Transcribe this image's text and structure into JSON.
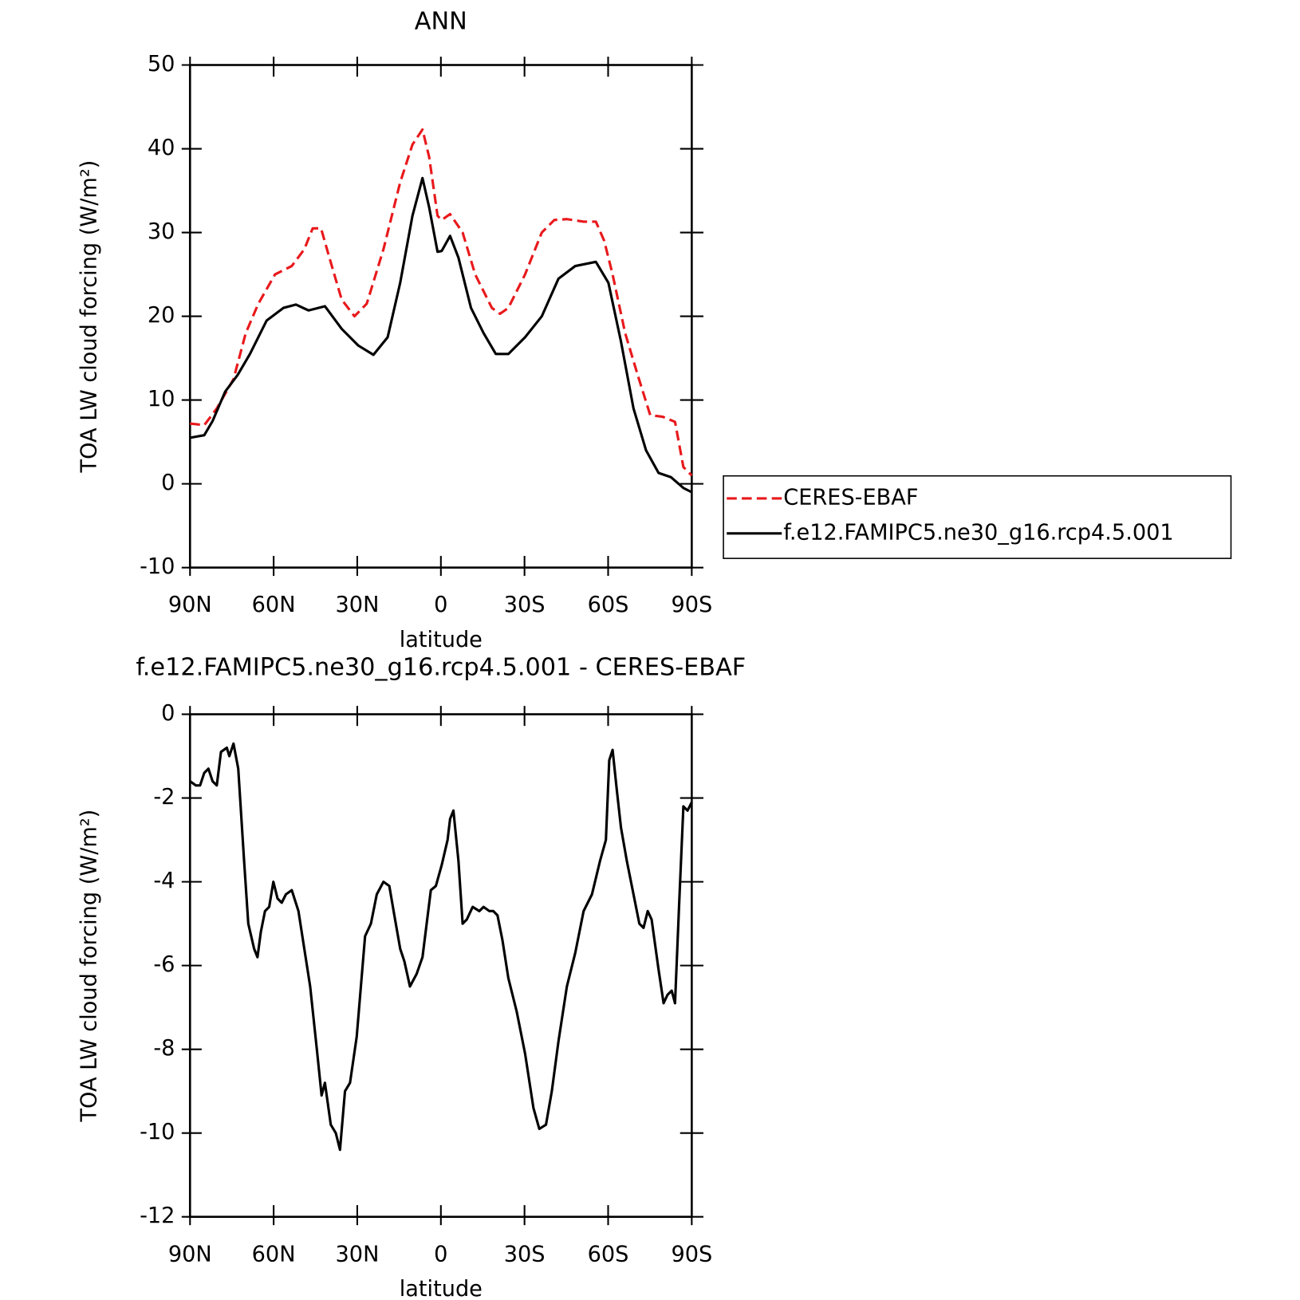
{
  "chart_data": [
    {
      "type": "line",
      "title": "ANN",
      "xlabel": "latitude",
      "ylabel": "TOA LW cloud forcing (W/m²)",
      "xlim": [
        90,
        -90
      ],
      "ylim": [
        -10,
        50
      ],
      "xticks": [
        {
          "value": 90,
          "label": "90N"
        },
        {
          "value": 60,
          "label": "60N"
        },
        {
          "value": 30,
          "label": "30N"
        },
        0,
        {
          "value": -30,
          "label": "30S"
        },
        {
          "value": -60,
          "label": "60S"
        },
        {
          "value": -90,
          "label": "90S"
        }
      ],
      "yticks": [
        -10,
        0,
        10,
        20,
        30,
        40,
        50
      ],
      "legend": "right",
      "series": [
        {
          "name": "CERES-EBAF",
          "color": "#e8191c",
          "linestyle": "dashed",
          "x": [
            90,
            84.9,
            80.4,
            74.4,
            70,
            65.5,
            59.5,
            53.5,
            49,
            46,
            43,
            40,
            35.6,
            31,
            26.6,
            20.6,
            14.6,
            10.2,
            6.6,
            4.2,
            1.2,
            -0.3,
            -3.3,
            -7.8,
            -12.3,
            -18.3,
            -21.2,
            -24.2,
            -30.2,
            -36.2,
            -40.7,
            -45.2,
            -51.2,
            -55.6,
            -58.6,
            -61.6,
            -66.1,
            -70.6,
            -75.1,
            -79.6,
            -84,
            -87,
            -90
          ],
          "values": [
            7.2,
            7.0,
            9,
            12.5,
            18,
            21.5,
            25,
            26,
            28,
            30.5,
            30.5,
            27,
            22,
            20,
            21.5,
            28,
            36,
            40.5,
            42.3,
            39,
            32,
            31.5,
            32.2,
            30,
            25,
            21,
            20.3,
            21,
            25,
            30,
            31.5,
            31.6,
            31.3,
            31.3,
            29,
            25,
            18,
            13,
            8.2,
            8,
            7.4,
            2,
            1.0
          ]
        },
        {
          "name": "f.e12.FAMIPC5.ne30_g16.rcp4.5.001",
          "color": "#000000",
          "linestyle": "solid",
          "x": [
            90,
            84.9,
            81.9,
            77.4,
            72.9,
            68.5,
            62.5,
            56.5,
            52,
            47.5,
            41.6,
            35.6,
            29.6,
            24.2,
            19.1,
            14.6,
            10.2,
            6.6,
            4.2,
            1.2,
            -0.3,
            -3.3,
            -6.3,
            -10.8,
            -15.3,
            -19.7,
            -24.2,
            -30.2,
            -36.2,
            -42.2,
            -48.2,
            -55.6,
            -60.1,
            -64.6,
            -69.1,
            -73.6,
            -78.1,
            -82.5,
            -87,
            -90
          ],
          "values": [
            5.5,
            5.8,
            7.5,
            11,
            13,
            15.5,
            19.5,
            21,
            21.4,
            20.7,
            21.2,
            18.5,
            16.5,
            15.4,
            17.5,
            24,
            32,
            36.5,
            33,
            27.7,
            27.8,
            29.6,
            27,
            21,
            18,
            15.5,
            15.5,
            17.5,
            20,
            24.5,
            26,
            26.5,
            24,
            17,
            9,
            4,
            1.3,
            0.8,
            -0.5,
            -1.0
          ]
        }
      ]
    },
    {
      "type": "line",
      "title": "f.e12.FAMIPC5.ne30_g16.rcp4.5.001 - CERES-EBAF",
      "xlabel": "latitude",
      "ylabel": "TOA LW cloud forcing (W/m²)",
      "xlim": [
        90,
        -90
      ],
      "ylim": [
        -12,
        0
      ],
      "xticks": [
        {
          "value": 90,
          "label": "90N"
        },
        {
          "value": 60,
          "label": "60N"
        },
        {
          "value": 30,
          "label": "30N"
        },
        0,
        {
          "value": -30,
          "label": "30S"
        },
        {
          "value": -60,
          "label": "60S"
        },
        {
          "value": -90,
          "label": "90S"
        }
      ],
      "yticks": [
        -12,
        -10,
        -8,
        -6,
        -4,
        -2,
        0
      ],
      "series": [
        {
          "color": "#000000",
          "linestyle": "solid",
          "x": [
            90,
            87.9,
            86.4,
            84.9,
            83.4,
            81.9,
            80.4,
            78.9,
            76.8,
            75.9,
            74.4,
            72.7,
            70.6,
            69.1,
            67,
            65.8,
            64.6,
            63.1,
            61.6,
            60.1,
            58.6,
            57.1,
            55.6,
            53.5,
            51.1,
            49,
            46.9,
            44.5,
            42.8,
            41.6,
            39.5,
            37.7,
            36.2,
            34.4,
            32.6,
            30.2,
            28.7,
            27.2,
            25.1,
            23,
            20.6,
            18.5,
            16.7,
            14.6,
            13.1,
            11.1,
            8.7,
            6.6,
            5.1,
            3.6,
            1.8,
            -0.3,
            -2.4,
            -3.3,
            -4.5,
            -6.3,
            -7.8,
            -9.3,
            -11.4,
            -13.8,
            -15.3,
            -17.4,
            -18.8,
            -20.3,
            -22.1,
            -24.2,
            -27.2,
            -30.2,
            -33.2,
            -35.3,
            -37.7,
            -39.8,
            -42.2,
            -45.2,
            -48.2,
            -51.2,
            -54.2,
            -57.1,
            -59.2,
            -60.4,
            -61.6,
            -63.1,
            -64.6,
            -66.7,
            -69.1,
            -71.2,
            -72.7,
            -74.2,
            -75.6,
            -78.1,
            -79.9,
            -81.3,
            -82.8,
            -84,
            -85.5,
            -87,
            -88.5,
            -90
          ],
          "values": [
            -1.6,
            -1.7,
            -1.7,
            -1.4,
            -1.3,
            -1.6,
            -1.7,
            -0.9,
            -0.8,
            -1.0,
            -0.7,
            -1.3,
            -3.5,
            -5.0,
            -5.6,
            -5.8,
            -5.2,
            -4.7,
            -4.6,
            -4.0,
            -4.4,
            -4.5,
            -4.3,
            -4.2,
            -4.7,
            -5.6,
            -6.5,
            -8.0,
            -9.1,
            -8.8,
            -9.8,
            -10.0,
            -10.4,
            -9.0,
            -8.8,
            -7.7,
            -6.5,
            -5.3,
            -5.0,
            -4.3,
            -4.0,
            -4.1,
            -4.8,
            -5.6,
            -5.9,
            -6.5,
            -6.2,
            -5.8,
            -5.0,
            -4.2,
            -4.1,
            -3.6,
            -3.0,
            -2.5,
            -2.3,
            -3.5,
            -5.0,
            -4.9,
            -4.6,
            -4.7,
            -4.6,
            -4.7,
            -4.7,
            -4.8,
            -5.4,
            -6.3,
            -7.1,
            -8.1,
            -9.4,
            -9.9,
            -9.8,
            -9.0,
            -7.8,
            -6.5,
            -5.7,
            -4.7,
            -4.3,
            -3.5,
            -3.0,
            -1.1,
            -0.85,
            -1.8,
            -2.7,
            -3.5,
            -4.3,
            -5.0,
            -5.1,
            -4.7,
            -4.9,
            -6.1,
            -6.9,
            -6.7,
            -6.6,
            -6.9,
            -4.5,
            -2.2,
            -2.3,
            -2.1
          ]
        }
      ]
    }
  ]
}
